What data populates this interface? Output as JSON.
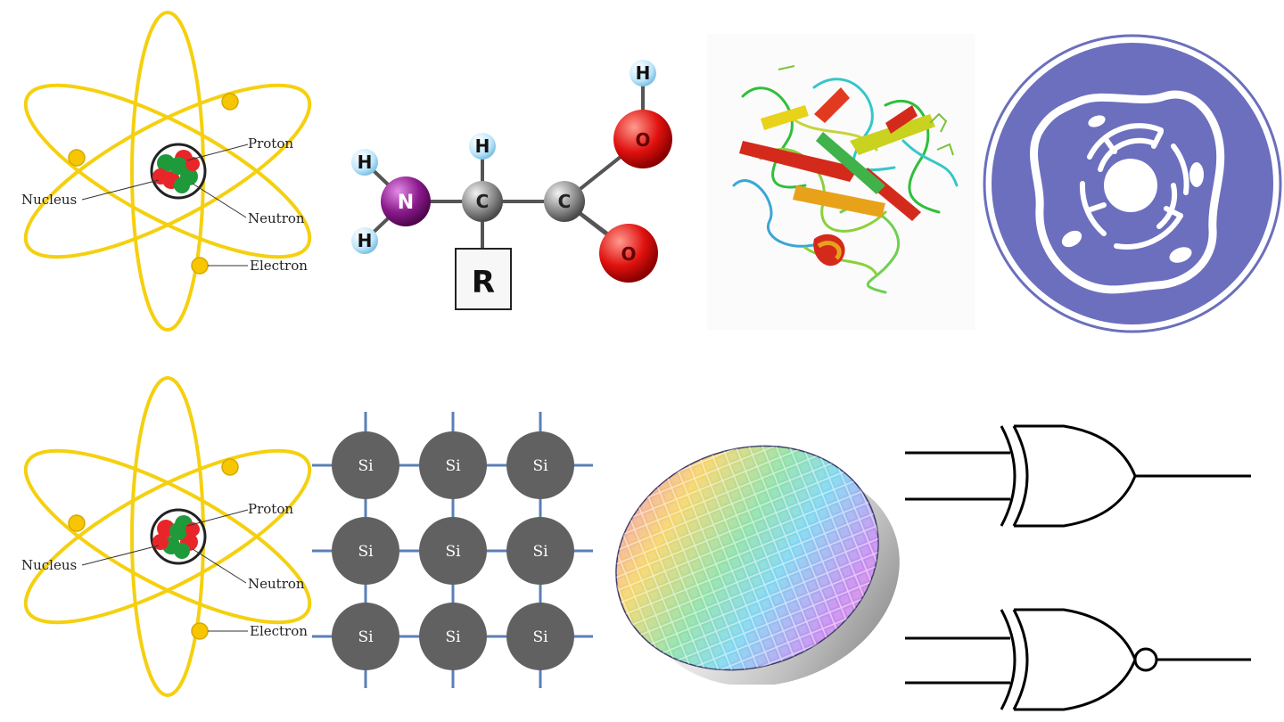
{
  "atom_top": {
    "labels": {
      "proton": "Proton",
      "nucleus": "Nucleus",
      "neutron": "Neutron",
      "electron": "Electron"
    }
  },
  "amino_acid": {
    "atoms": {
      "h1": "H",
      "h2": "H",
      "h3": "H",
      "h4": "H",
      "n": "N",
      "c1": "C",
      "c2": "C",
      "o1": "O",
      "o2": "O",
      "r": "R"
    }
  },
  "atom_bottom": {
    "labels": {
      "proton": "Proton",
      "nucleus": "Nucleus",
      "neutron": "Neutron",
      "electron": "Electron"
    }
  },
  "silicon_lattice": {
    "atom_label": "Si",
    "atoms": [
      "Si",
      "Si",
      "Si",
      "Si",
      "Si",
      "Si",
      "Si",
      "Si",
      "Si"
    ]
  },
  "colors": {
    "orbit": "#f5d00f",
    "electron": "#f7c600",
    "proton": "#e8262a",
    "neutron": "#1f9a3a",
    "nitrogen": "#8b1a8c",
    "oxygen": "#e0120f",
    "carbon": "#8e8e8e",
    "hydrogen": "#bfe6fb",
    "silicon": "#616161",
    "lattice_bond": "#5b7fb8",
    "cell_icon": "#6b6fbd"
  }
}
